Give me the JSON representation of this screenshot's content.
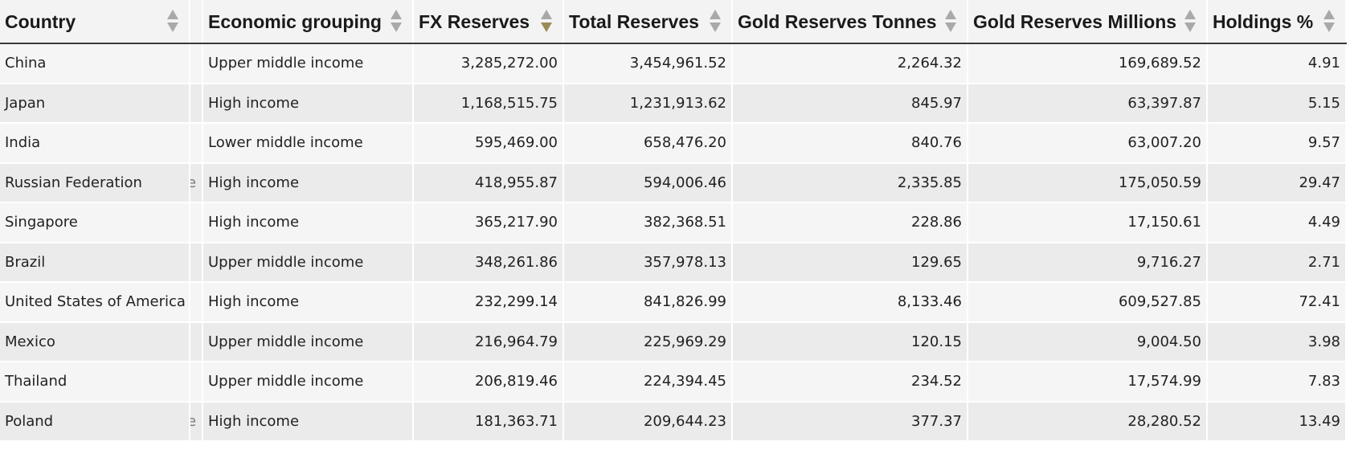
{
  "table": {
    "columns": [
      {
        "label": "Country"
      },
      {
        "label": "Economic grouping"
      },
      {
        "label": "FX Reserves"
      },
      {
        "label": "Total Reserves"
      },
      {
        "label": "Gold Reserves Tonnes"
      },
      {
        "label": "Gold Reserves Millions"
      },
      {
        "label": "Holdings %"
      }
    ],
    "sort_icon": "sort-arrows-icon",
    "active_sort_color": "#9c8a55",
    "rows": [
      {
        "country": "China",
        "gap": "",
        "econ": "Upper middle income",
        "fx": "3,285,272.00",
        "total": "3,454,961.52",
        "gold_tonnes": "2,264.32",
        "gold_millions": "169,689.52",
        "holdings": "4.91"
      },
      {
        "country": "Japan",
        "gap": "",
        "econ": "High income",
        "fx": "1,168,515.75",
        "total": "1,231,913.62",
        "gold_tonnes": "845.97",
        "gold_millions": "63,397.87",
        "holdings": "5.15"
      },
      {
        "country": "India",
        "gap": "",
        "econ": "Lower middle income",
        "fx": "595,469.00",
        "total": "658,476.20",
        "gold_tonnes": "840.76",
        "gold_millions": "63,007.20",
        "holdings": "9.57"
      },
      {
        "country": "Russian Federation",
        "gap": "e",
        "econ": "High income",
        "fx": "418,955.87",
        "total": "594,006.46",
        "gold_tonnes": "2,335.85",
        "gold_millions": "175,050.59",
        "holdings": "29.47"
      },
      {
        "country": "Singapore",
        "gap": "",
        "econ": "High income",
        "fx": "365,217.90",
        "total": "382,368.51",
        "gold_tonnes": "228.86",
        "gold_millions": "17,150.61",
        "holdings": "4.49"
      },
      {
        "country": "Brazil",
        "gap": "",
        "econ": "Upper middle income",
        "fx": "348,261.86",
        "total": "357,978.13",
        "gold_tonnes": "129.65",
        "gold_millions": "9,716.27",
        "holdings": "2.71"
      },
      {
        "country": "United States of America",
        "gap": "",
        "econ": "High income",
        "fx": "232,299.14",
        "total": "841,826.99",
        "gold_tonnes": "8,133.46",
        "gold_millions": "609,527.85",
        "holdings": "72.41"
      },
      {
        "country": "Mexico",
        "gap": "",
        "econ": "Upper middle income",
        "fx": "216,964.79",
        "total": "225,969.29",
        "gold_tonnes": "120.15",
        "gold_millions": "9,004.50",
        "holdings": "3.98"
      },
      {
        "country": "Thailand",
        "gap": "",
        "econ": "Upper middle income",
        "fx": "206,819.46",
        "total": "224,394.45",
        "gold_tonnes": "234.52",
        "gold_millions": "17,574.99",
        "holdings": "7.83"
      },
      {
        "country": "Poland",
        "gap": "e",
        "econ": "High income",
        "fx": "181,363.71",
        "total": "209,644.23",
        "gold_tonnes": "377.37",
        "gold_millions": "28,280.52",
        "holdings": "13.49"
      }
    ]
  }
}
